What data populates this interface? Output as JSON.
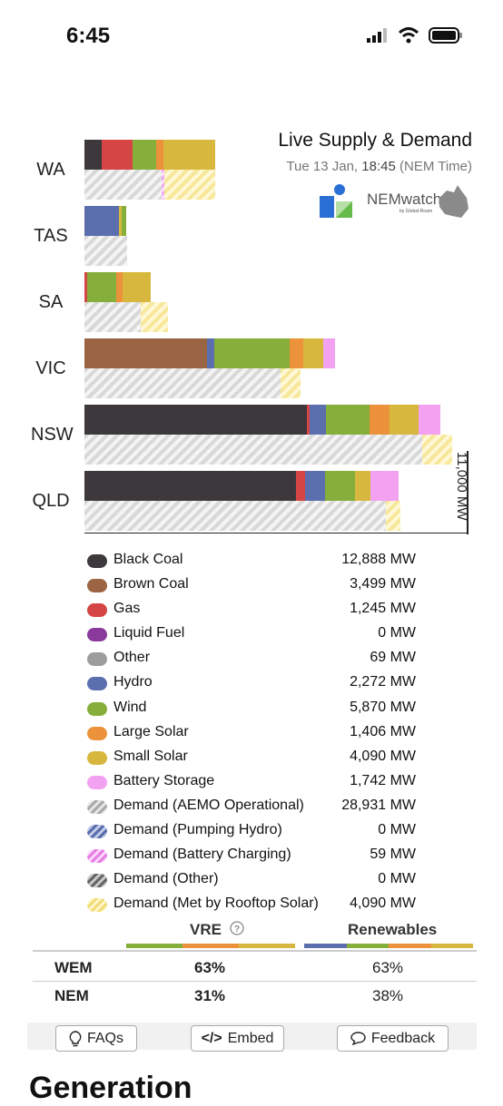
{
  "status_bar": {
    "time": "6:45"
  },
  "header": {
    "title": "Live Supply & Demand",
    "date": "Tue 13 Jan,",
    "time": "18:45",
    "zone": "(NEM Time)",
    "logo_text": "NEMwatch",
    "logo_by": "by Global-Roam"
  },
  "regions": [
    {
      "label": "WA"
    },
    {
      "label": "TAS"
    },
    {
      "label": "SA"
    },
    {
      "label": "VIC"
    },
    {
      "label": "NSW"
    },
    {
      "label": "QLD"
    }
  ],
  "axis_label": "11,000 MW",
  "legend": [
    {
      "name": "Black Coal",
      "value": "12,888 MW",
      "color": "#3d383b"
    },
    {
      "name": "Brown Coal",
      "value": "3,499 MW",
      "color": "#9b6442"
    },
    {
      "name": "Gas",
      "value": "1,245 MW",
      "color": "#d54545"
    },
    {
      "name": "Liquid Fuel",
      "value": "0 MW",
      "color": "#8a3a9a"
    },
    {
      "name": "Other",
      "value": "69 MW",
      "color": "#9d9d9d"
    },
    {
      "name": "Hydro",
      "value": "2,272 MW",
      "color": "#5b6fae"
    },
    {
      "name": "Wind",
      "value": "5,870 MW",
      "color": "#86ae3a"
    },
    {
      "name": "Large Solar",
      "value": "1,406 MW",
      "color": "#eb923a"
    },
    {
      "name": "Small Solar",
      "value": "4,090 MW",
      "color": "#d8b73e"
    },
    {
      "name": "Battery Storage",
      "value": "1,742 MW",
      "color": "#f2a2f0"
    },
    {
      "name": "Demand (AEMO Operational)",
      "value": "28,931 MW",
      "pattern": "grey"
    },
    {
      "name": "Demand (Pumping Hydro)",
      "value": "0 MW",
      "pattern": "blue"
    },
    {
      "name": "Demand (Battery Charging)",
      "value": "59 MW",
      "pattern": "pink"
    },
    {
      "name": "Demand (Other)",
      "value": "0 MW",
      "pattern": "dark"
    },
    {
      "name": "Demand (Met by Rooftop Solar)",
      "value": "4,090 MW",
      "pattern": "yellow"
    }
  ],
  "table": {
    "col_vre": "VRE",
    "col_renew": "Renewables",
    "rows": [
      {
        "label": "WEM",
        "vre": "63%",
        "renew": "63%"
      },
      {
        "label": "NEM",
        "vre": "31%",
        "renew": "38%"
      }
    ]
  },
  "buttons": {
    "faqs": "FAQs",
    "embed": "Embed",
    "feedback": "Feedback"
  },
  "section_heading": "Generation"
}
